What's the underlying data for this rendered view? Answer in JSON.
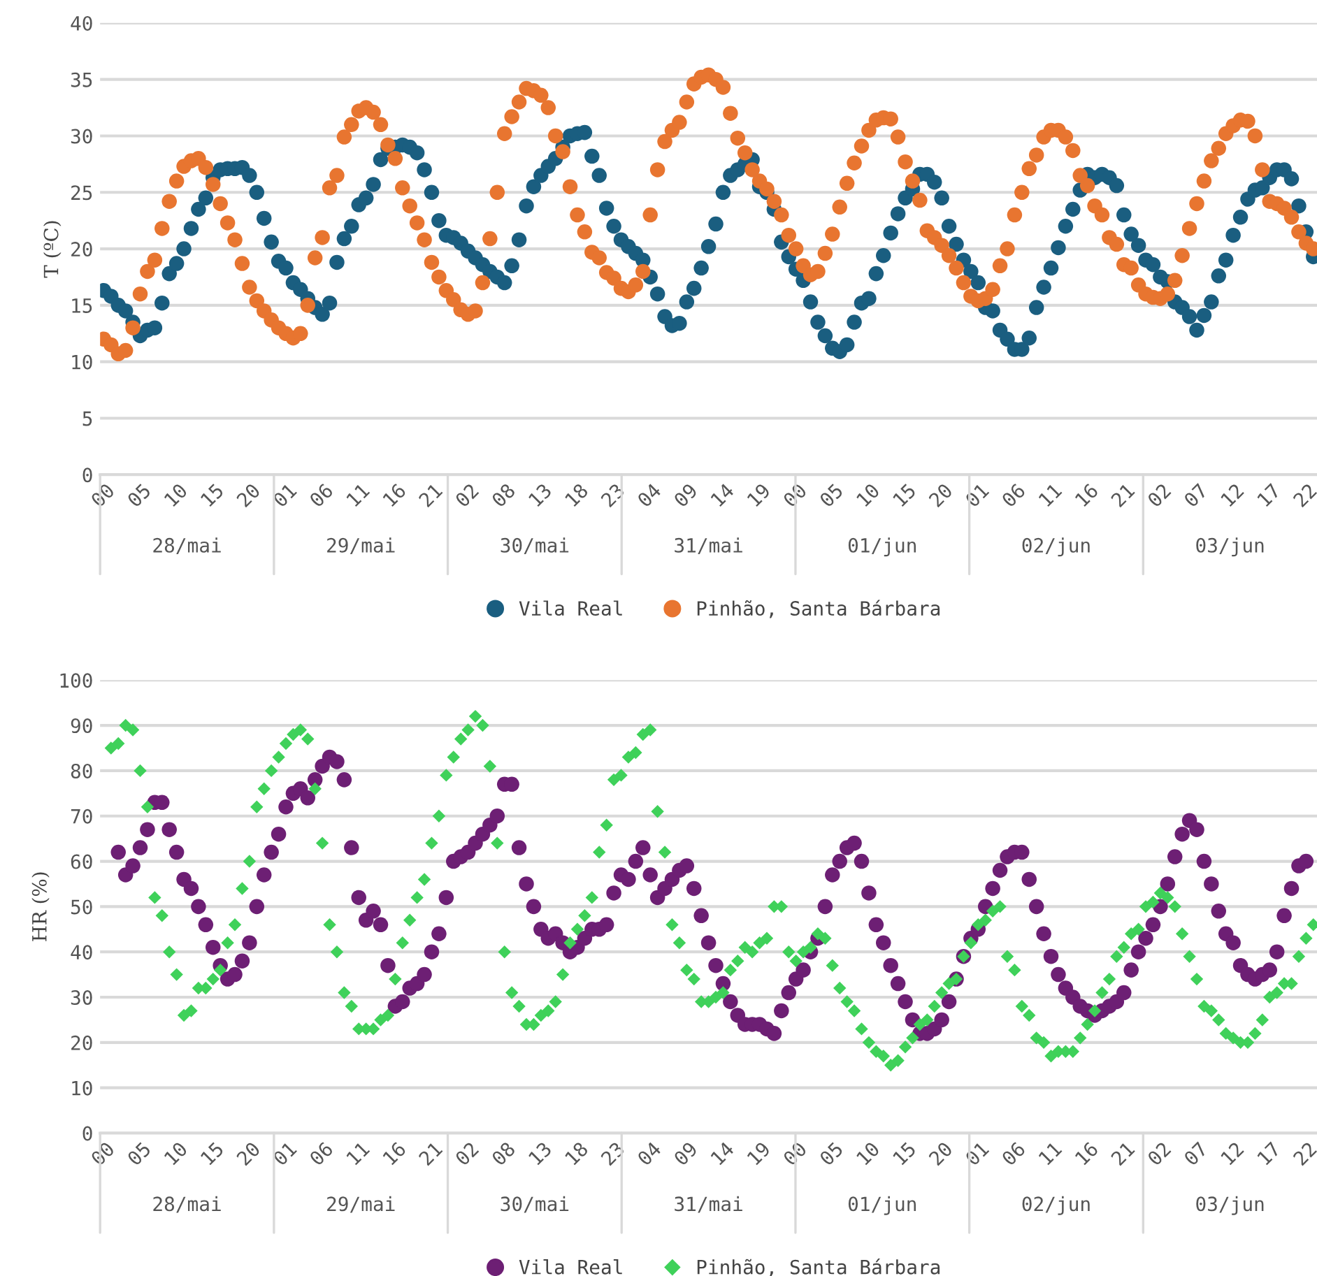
{
  "chart_data": [
    {
      "type": "scatter",
      "ylabel": "T (ºC)",
      "ylim": [
        0,
        40
      ],
      "yticks": [
        0,
        5,
        10,
        15,
        20,
        25,
        30,
        35,
        40
      ],
      "categories": [
        "00",
        null,
        null,
        null,
        null,
        "05",
        null,
        null,
        null,
        null,
        "10",
        null,
        null,
        null,
        null,
        "15",
        null,
        null,
        null,
        null,
        "20",
        null,
        null,
        null,
        null,
        "01",
        null,
        null,
        null,
        null,
        "06",
        null,
        null,
        null,
        null,
        "11",
        null,
        null,
        null,
        null,
        "16",
        null,
        null,
        null,
        null,
        "21",
        null,
        null,
        null,
        null,
        "02",
        null,
        null,
        null,
        null,
        "08",
        null,
        null,
        null,
        null,
        "13",
        null,
        null,
        null,
        null,
        "18",
        null,
        null,
        null,
        null,
        "23",
        null,
        null,
        null,
        null,
        "04",
        null,
        null,
        null,
        null,
        "09",
        null,
        null,
        null,
        null,
        "14",
        null,
        null,
        null,
        null,
        "19",
        null,
        null,
        null,
        null,
        "00",
        null,
        null,
        null,
        null,
        "05",
        null,
        null,
        null,
        null,
        "10",
        null,
        null,
        null,
        null,
        "15",
        null,
        null,
        null,
        null,
        "20",
        null,
        null,
        null,
        null,
        "01",
        null,
        null,
        null,
        null,
        "06",
        null,
        null,
        null,
        null,
        "11",
        null,
        null,
        null,
        null,
        "16",
        null,
        null,
        null,
        null,
        "21",
        null,
        null,
        null,
        null,
        "02",
        null,
        null,
        null,
        null,
        "07",
        null,
        null,
        null,
        null,
        "12",
        null,
        null,
        null,
        null,
        "17",
        null,
        null,
        null,
        null,
        "22",
        null
      ],
      "annotations": [
        "28/mai",
        "29/mai",
        "30/mai",
        "31/mai",
        "01/jun",
        "02/jun",
        "03/jun"
      ],
      "grid": "y",
      "legend": "bottom",
      "series": [
        {
          "name": "Vila Real",
          "color": "#1a5e80",
          "marker": "circle",
          "values": [
            16.3,
            15.8,
            15.0,
            14.5,
            13.5,
            12.3,
            12.8,
            13.0,
            15.2,
            17.8,
            18.7,
            20.0,
            21.8,
            23.5,
            24.5,
            26.3,
            27.0,
            27.1,
            27.1,
            27.2,
            26.5,
            25.0,
            22.7,
            20.6,
            18.9,
            18.3,
            17.0,
            16.4,
            15.6,
            14.8,
            14.2,
            15.2,
            18.8,
            20.9,
            22.0,
            23.9,
            24.5,
            25.7,
            27.9,
            28.9,
            29.0,
            29.2,
            29.0,
            28.5,
            27.0,
            25.0,
            22.5,
            21.2,
            21.0,
            20.5,
            19.8,
            19.2,
            18.6,
            18.0,
            17.5,
            17.0,
            18.5,
            20.8,
            23.8,
            25.5,
            26.5,
            27.3,
            28.0,
            29.0,
            30.0,
            30.2,
            30.3,
            28.2,
            26.5,
            23.6,
            22.0,
            20.8,
            20.2,
            19.6,
            19.0,
            17.5,
            16.0,
            14.0,
            13.2,
            13.4,
            15.3,
            16.5,
            18.3,
            20.2,
            22.2,
            25.0,
            26.5,
            27.0,
            27.5,
            27.9,
            25.5,
            25.0,
            23.5,
            20.6,
            19.3,
            18.2,
            17.2,
            15.3,
            13.5,
            12.3,
            11.2,
            10.9,
            11.5,
            13.5,
            15.2,
            15.6,
            17.8,
            19.4,
            21.4,
            23.1,
            24.5,
            25.3,
            26.6,
            26.6,
            25.9,
            24.5,
            22.0,
            20.4,
            19.0,
            18.0,
            17.0,
            14.8,
            14.5,
            12.8,
            12.0,
            11.1,
            11.1,
            12.1,
            14.8,
            16.6,
            18.3,
            20.1,
            22.0,
            23.5,
            25.2,
            26.6,
            26.3,
            26.6,
            26.3,
            25.6,
            23.0,
            21.3,
            20.3,
            19.0,
            18.6,
            17.5,
            17.1,
            15.3,
            14.8,
            14.0,
            12.8,
            14.1,
            15.3,
            17.6,
            19.0,
            21.2,
            22.8,
            24.4,
            25.2,
            25.4,
            26.3,
            27.0,
            27.0,
            26.2,
            23.8,
            21.5,
            19.3
          ]
        },
        {
          "name": "Pinhão, Santa Bárbara",
          "color": "#e87530",
          "marker": "circle",
          "values": [
            12.0,
            11.5,
            10.7,
            11.0,
            13.0,
            16.0,
            18.0,
            19.0,
            21.8,
            24.2,
            26.0,
            27.3,
            27.8,
            28.0,
            27.2,
            25.7,
            24.0,
            22.3,
            20.8,
            18.7,
            16.6,
            15.4,
            14.5,
            13.7,
            13.0,
            12.5,
            12.1,
            12.5,
            15.0,
            19.2,
            21.0,
            25.4,
            26.5,
            29.9,
            31.0,
            32.2,
            32.5,
            32.1,
            31.0,
            29.2,
            28.0,
            25.4,
            23.8,
            22.3,
            20.8,
            18.8,
            17.5,
            16.3,
            15.5,
            14.6,
            14.2,
            14.5,
            17.0,
            20.9,
            25.0,
            30.2,
            31.7,
            33.0,
            34.2,
            34.0,
            33.6,
            32.5,
            30.0,
            28.6,
            25.5,
            23.0,
            21.5,
            19.7,
            19.2,
            17.9,
            17.4,
            16.5,
            16.2,
            16.8,
            18.0,
            23.0,
            27.0,
            29.5,
            30.5,
            31.2,
            33.0,
            34.6,
            35.2,
            35.4,
            35.0,
            34.3,
            32.0,
            29.8,
            28.5,
            27.0,
            26.0,
            25.3,
            24.2,
            23.0,
            21.2,
            20.0,
            18.5,
            17.7,
            18.0,
            19.6,
            21.3,
            23.7,
            25.8,
            27.6,
            29.1,
            30.5,
            31.4,
            31.6,
            31.5,
            29.9,
            27.7,
            26.0,
            24.3,
            21.6,
            21.0,
            20.3,
            19.4,
            18.3,
            17.0,
            15.8,
            15.4,
            15.6,
            16.4,
            18.5,
            20.0,
            23.0,
            25.0,
            27.1,
            28.3,
            29.9,
            30.5,
            30.5,
            29.9,
            28.7,
            26.5,
            25.6,
            23.8,
            23.0,
            21.0,
            20.4,
            18.6,
            18.3,
            16.8,
            16.0,
            15.7,
            15.6,
            16.0,
            17.2,
            19.4,
            21.8,
            24.0,
            26.0,
            27.8,
            28.9,
            30.2,
            30.9,
            31.4,
            31.3,
            30.0,
            27.0,
            24.2,
            24.0,
            23.6,
            22.8,
            21.5,
            20.5,
            20.0
          ]
        }
      ]
    },
    {
      "type": "scatter",
      "ylabel": "HR (%)",
      "ylim": [
        0,
        100
      ],
      "yticks": [
        0,
        10,
        20,
        30,
        40,
        50,
        60,
        70,
        80,
        90,
        100
      ],
      "categories": [
        "00",
        null,
        null,
        null,
        null,
        "05",
        null,
        null,
        null,
        null,
        "10",
        null,
        null,
        null,
        null,
        "15",
        null,
        null,
        null,
        null,
        "20",
        null,
        null,
        null,
        null,
        "01",
        null,
        null,
        null,
        null,
        "06",
        null,
        null,
        null,
        null,
        "11",
        null,
        null,
        null,
        null,
        "16",
        null,
        null,
        null,
        null,
        "21",
        null,
        null,
        null,
        null,
        "02",
        null,
        null,
        null,
        null,
        "08",
        null,
        null,
        null,
        null,
        "13",
        null,
        null,
        null,
        null,
        "18",
        null,
        null,
        null,
        null,
        "23",
        null,
        null,
        null,
        null,
        "04",
        null,
        null,
        null,
        null,
        "09",
        null,
        null,
        null,
        null,
        "14",
        null,
        null,
        null,
        null,
        "19",
        null,
        null,
        null,
        null,
        "00",
        null,
        null,
        null,
        null,
        "05",
        null,
        null,
        null,
        null,
        "10",
        null,
        null,
        null,
        null,
        "15",
        null,
        null,
        null,
        null,
        "20",
        null,
        null,
        null,
        null,
        "01",
        null,
        null,
        null,
        null,
        "06",
        null,
        null,
        null,
        null,
        "11",
        null,
        null,
        null,
        null,
        "16",
        null,
        null,
        null,
        null,
        "21",
        null,
        null,
        null,
        null,
        "02",
        null,
        null,
        null,
        null,
        "07",
        null,
        null,
        null,
        null,
        "12",
        null,
        null,
        null,
        null,
        "17",
        null,
        null,
        null,
        null,
        "22",
        null
      ],
      "annotations": [
        "28/mai",
        "29/mai",
        "30/mai",
        "31/mai",
        "01/jun",
        "02/jun",
        "03/jun"
      ],
      "grid": "y",
      "legend": "bottom",
      "series": [
        {
          "name": "Vila Real",
          "color": "#6d1f74",
          "marker": "circle",
          "values": [
            null,
            null,
            62,
            57,
            59,
            63,
            67,
            73,
            73,
            67,
            62,
            56,
            54,
            50,
            46,
            41,
            37,
            34,
            35,
            38,
            42,
            50,
            57,
            62,
            66,
            72,
            75,
            76,
            74,
            78,
            81,
            83,
            82,
            78,
            63,
            52,
            47,
            49,
            46,
            37,
            28,
            29,
            32,
            33,
            35,
            40,
            44,
            52,
            60,
            61,
            62,
            64,
            66,
            68,
            70,
            77,
            77,
            63,
            55,
            50,
            45,
            43,
            44,
            42,
            40,
            41,
            43,
            45,
            45,
            46,
            53,
            57,
            56,
            60,
            63,
            57,
            52,
            54,
            56,
            58,
            59,
            54,
            48,
            42,
            37,
            33,
            29,
            26,
            24,
            24,
            24,
            23,
            22,
            27,
            31,
            34,
            36,
            40,
            43,
            50,
            57,
            60,
            63,
            64,
            60,
            53,
            46,
            42,
            37,
            33,
            29,
            25,
            22,
            22,
            23,
            25,
            29,
            34,
            39,
            43,
            45,
            50,
            54,
            58,
            61,
            62,
            62,
            56,
            50,
            44,
            39,
            35,
            32,
            30,
            28,
            27,
            26,
            27,
            28,
            29,
            31,
            36,
            40,
            43,
            46,
            50,
            55,
            61,
            66,
            69,
            67,
            60,
            55,
            49,
            44,
            42,
            37,
            35,
            34,
            35,
            36,
            40,
            48,
            54,
            59,
            60,
            null
          ]
        },
        {
          "name": "Pinhão, Santa Bárbara",
          "color": "#3fd15a",
          "marker": "diamond",
          "values": [
            null,
            85,
            86,
            90,
            89,
            80,
            72,
            52,
            48,
            40,
            35,
            26,
            27,
            32,
            32,
            34,
            36,
            42,
            46,
            54,
            60,
            72,
            76,
            80,
            83,
            86,
            88,
            89,
            87,
            76,
            64,
            46,
            40,
            31,
            28,
            23,
            23,
            23,
            25,
            26,
            34,
            42,
            47,
            52,
            56,
            64,
            70,
            79,
            83,
            87,
            89,
            92,
            90,
            81,
            64,
            40,
            31,
            28,
            24,
            24,
            26,
            27,
            29,
            35,
            42,
            45,
            48,
            52,
            62,
            68,
            78,
            79,
            83,
            84,
            88,
            89,
            71,
            62,
            46,
            42,
            36,
            34,
            29,
            29,
            30,
            31,
            36,
            38,
            41,
            40,
            42,
            43,
            50,
            50,
            40,
            38,
            40,
            41,
            44,
            43,
            37,
            32,
            29,
            27,
            23,
            20,
            18,
            17,
            15,
            16,
            19,
            21,
            24,
            25,
            28,
            31,
            33,
            34,
            39,
            42,
            46,
            47,
            49,
            50,
            39,
            36,
            28,
            26,
            21,
            20,
            17,
            18,
            18,
            18,
            21,
            24,
            27,
            31,
            34,
            39,
            41,
            44,
            45,
            50,
            51,
            53,
            52,
            50,
            44,
            39,
            34,
            28,
            27,
            25,
            22,
            21,
            20,
            20,
            22,
            25,
            30,
            31,
            33,
            33,
            39,
            43,
            46
          ]
        }
      ]
    }
  ]
}
